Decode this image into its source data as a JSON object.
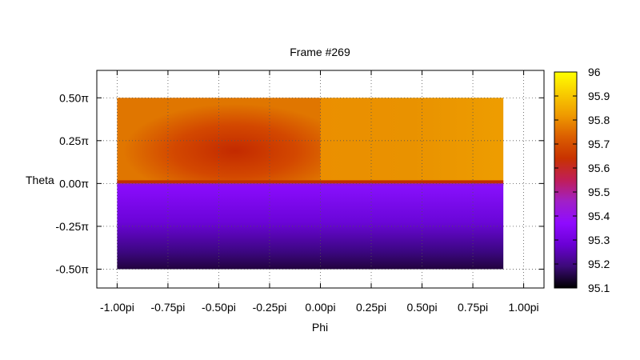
{
  "chart_data": {
    "type": "heatmap",
    "title": "Frame #269",
    "xlabel": "Phi",
    "ylabel": "Theta",
    "xlim": [
      -1.1,
      1.1
    ],
    "ylim": [
      -0.61,
      0.66
    ],
    "x_ticks": [
      {
        "value": -1.0,
        "label": "-1.00pi"
      },
      {
        "value": -0.75,
        "label": "-0.75pi"
      },
      {
        "value": -0.5,
        "label": "-0.50pi"
      },
      {
        "value": -0.25,
        "label": "-0.25pi"
      },
      {
        "value": 0.0,
        "label": "0.00pi"
      },
      {
        "value": 0.25,
        "label": "0.25pi"
      },
      {
        "value": 0.5,
        "label": "0.50pi"
      },
      {
        "value": 0.75,
        "label": "0.75pi"
      },
      {
        "value": 1.0,
        "label": "1.00pi"
      }
    ],
    "y_ticks": [
      {
        "value": 0.5,
        "label": "0.50π"
      },
      {
        "value": 0.25,
        "label": "0.25π"
      },
      {
        "value": 0.0,
        "label": "0.00π"
      },
      {
        "value": -0.25,
        "label": "-0.25π"
      },
      {
        "value": -0.5,
        "label": "-0.50π"
      }
    ],
    "data_extent": {
      "x": [
        -1.0,
        0.9
      ],
      "y": [
        -0.5,
        0.5
      ]
    },
    "grid": true,
    "colorbar": {
      "min": 95.1,
      "max": 96.0,
      "ticks": [
        "96",
        "95.9",
        "95.8",
        "95.7",
        "95.6",
        "95.5",
        "95.4",
        "95.3",
        "95.2",
        "95.1"
      ],
      "palette": [
        "#000000",
        "#3c0a78",
        "#6a00d4",
        "#8f0bff",
        "#a020c8",
        "#c01e58",
        "#c83200",
        "#db5e00",
        "#ef9a00",
        "#f8cc00",
        "#ffff00"
      ]
    },
    "regions": [
      {
        "x": [
          -1.0,
          0.0
        ],
        "y": [
          0.0,
          0.5
        ],
        "profile": "warm-low",
        "center_value": 95.66,
        "edge_value": 95.8
      },
      {
        "x": [
          0.0,
          0.9
        ],
        "y": [
          0.0,
          0.5
        ],
        "profile": "warm-high",
        "center_value": 95.82,
        "edge_value": 95.86
      },
      {
        "x": [
          -1.0,
          0.0
        ],
        "y": [
          -0.5,
          0.0
        ],
        "profile": "cool",
        "top_value": 95.31,
        "bottom_value": 95.14
      },
      {
        "x": [
          0.0,
          0.9
        ],
        "y": [
          -0.5,
          0.0
        ],
        "profile": "cool",
        "top_value": 95.29,
        "bottom_value": 95.14
      }
    ],
    "equator_band_value": 95.58
  }
}
